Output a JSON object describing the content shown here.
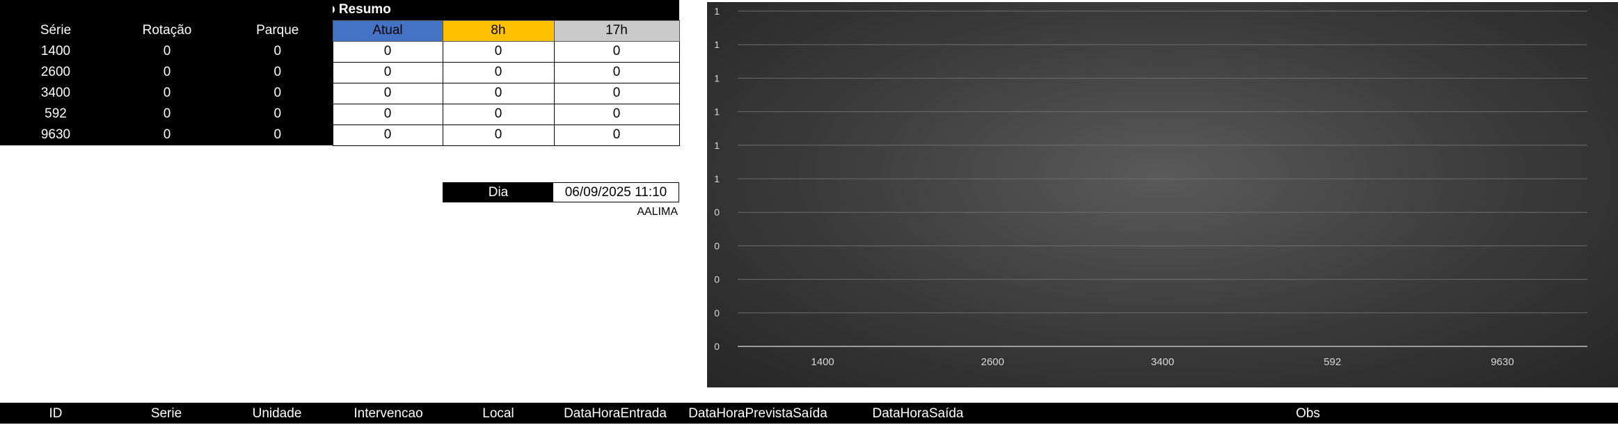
{
  "summary": {
    "title": "Quadro Resumo",
    "headers": [
      "Série",
      "Rotação",
      "Parque",
      "Atual",
      "8h",
      "17h"
    ],
    "rows": [
      [
        "1400",
        "0",
        "0",
        "0",
        "0",
        "0"
      ],
      [
        "2600",
        "0",
        "0",
        "0",
        "0",
        "0"
      ],
      [
        "3400",
        "0",
        "0",
        "0",
        "0",
        "0"
      ],
      [
        "592",
        "0",
        "0",
        "0",
        "0",
        "0"
      ],
      [
        "9630",
        "0",
        "0",
        "0",
        "0",
        "0"
      ]
    ],
    "header_colors": {
      "atual": "#4472c4",
      "h8": "#ffc000",
      "h17": "#c9c9c9"
    }
  },
  "dia": {
    "label": "Dia",
    "value": "06/09/2025 11:10",
    "user": "AALIMA"
  },
  "chart_data": {
    "type": "bar",
    "categories": [
      "1400",
      "2600",
      "3400",
      "592",
      "9630"
    ],
    "series": [
      {
        "values": [
          0,
          0,
          0,
          0,
          0
        ]
      }
    ],
    "y_tick_labels": [
      "0",
      "0",
      "0",
      "0",
      "0",
      "1",
      "1",
      "1",
      "1",
      "1",
      "1"
    ],
    "ylim": [
      0,
      1
    ],
    "grid": true,
    "legend": "none",
    "title": "",
    "xlabel": "",
    "ylabel": ""
  },
  "bottom_table": {
    "columns": [
      "ID",
      "Serie",
      "Unidade",
      "Intervencao",
      "Local",
      "DataHoraEntrada",
      "DataHoraPrevistaSaída",
      "DataHoraSaída",
      "Obs"
    ]
  }
}
